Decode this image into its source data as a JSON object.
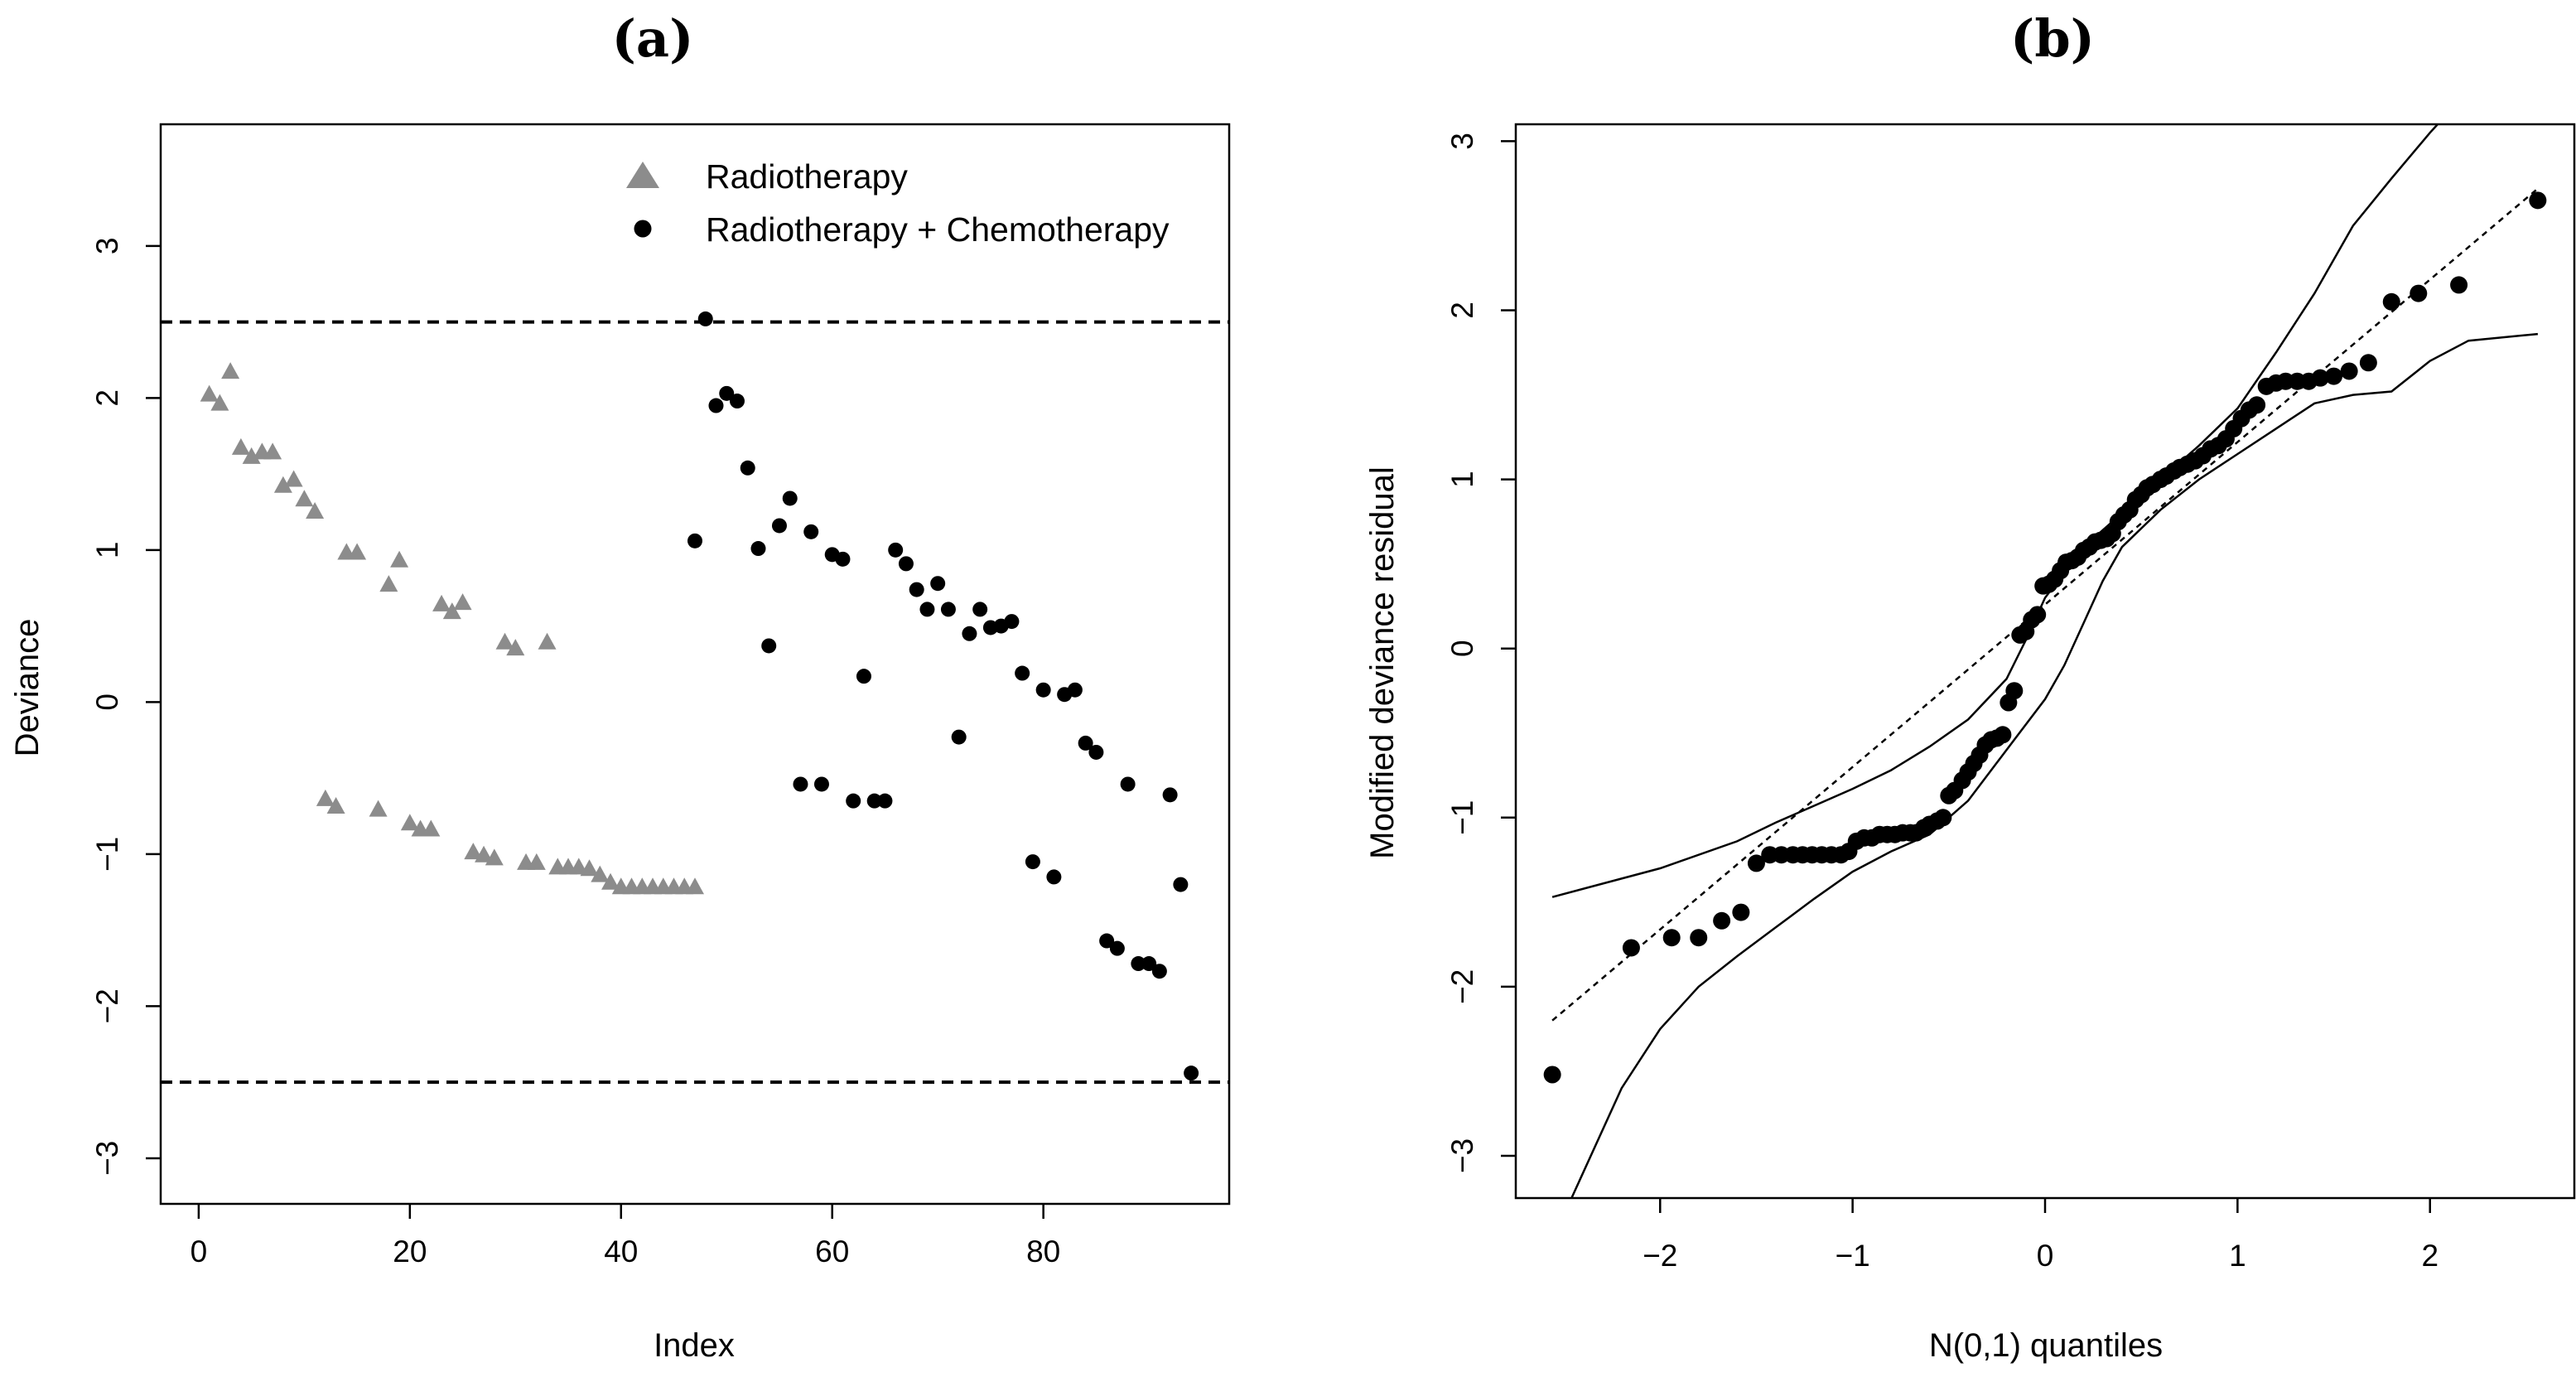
{
  "chart_data": [
    {
      "id": "a",
      "type": "scatter",
      "title": "(a)",
      "xlabel": "Index",
      "ylabel": "Deviance",
      "xlim": [
        -3.6,
        97.6
      ],
      "ylim": [
        -3.3,
        3.8
      ],
      "xticks": [
        0,
        20,
        40,
        60,
        80
      ],
      "xtick_labels": [
        "0",
        "20",
        "40",
        "60",
        "80"
      ],
      "yticks": [
        -3,
        -2,
        -1,
        0,
        1,
        2,
        3
      ],
      "ytick_labels": [
        "−3",
        "−2",
        "−1",
        "0",
        "1",
        "2",
        "3"
      ],
      "hlines": [
        2.5,
        -2.5
      ],
      "legend_position": "top-right",
      "series": [
        {
          "name": "Radiotherapy",
          "marker": "triangle",
          "color": "#8c8c8c",
          "points": [
            [
              1,
              2.02
            ],
            [
              2,
              1.96
            ],
            [
              3,
              2.17
            ],
            [
              4,
              1.67
            ],
            [
              5,
              1.61
            ],
            [
              6,
              1.64
            ],
            [
              7,
              1.64
            ],
            [
              8,
              1.42
            ],
            [
              9,
              1.46
            ],
            [
              10,
              1.33
            ],
            [
              11,
              1.25
            ],
            [
              12,
              -0.64
            ],
            [
              13,
              -0.69
            ],
            [
              14,
              0.98
            ],
            [
              15,
              0.98
            ],
            [
              17,
              -0.71
            ],
            [
              18,
              0.77
            ],
            [
              19,
              0.93
            ],
            [
              20,
              -0.8
            ],
            [
              21,
              -0.84
            ],
            [
              22,
              -0.84
            ],
            [
              23,
              0.64
            ],
            [
              24,
              0.59
            ],
            [
              25,
              0.65
            ],
            [
              26,
              -0.99
            ],
            [
              27,
              -1.01
            ],
            [
              28,
              -1.03
            ],
            [
              29,
              0.39
            ],
            [
              30,
              0.35
            ],
            [
              31,
              -1.06
            ],
            [
              32,
              -1.06
            ],
            [
              33,
              0.39
            ],
            [
              34,
              -1.09
            ],
            [
              35,
              -1.09
            ],
            [
              36,
              -1.09
            ],
            [
              37,
              -1.1
            ],
            [
              38,
              -1.14
            ],
            [
              39,
              -1.19
            ],
            [
              40,
              -1.22
            ],
            [
              41,
              -1.22
            ],
            [
              42,
              -1.22
            ],
            [
              43,
              -1.22
            ],
            [
              44,
              -1.22
            ],
            [
              45,
              -1.22
            ],
            [
              46,
              -1.22
            ],
            [
              47,
              -1.22
            ]
          ]
        },
        {
          "name": "Radiotherapy + Chemotherapy",
          "marker": "circle",
          "color": "#000000",
          "points": [
            [
              47,
              1.06
            ],
            [
              48,
              2.52
            ],
            [
              49,
              1.95
            ],
            [
              50,
              2.03
            ],
            [
              51,
              1.98
            ],
            [
              52,
              1.54
            ],
            [
              53,
              1.01
            ],
            [
              54,
              0.37
            ],
            [
              55,
              1.16
            ],
            [
              56,
              1.34
            ],
            [
              57,
              -0.54
            ],
            [
              58,
              1.12
            ],
            [
              59,
              -0.54
            ],
            [
              60,
              0.97
            ],
            [
              61,
              0.94
            ],
            [
              62,
              -0.65
            ],
            [
              63,
              0.17
            ],
            [
              64,
              -0.65
            ],
            [
              65,
              -0.65
            ],
            [
              66,
              1.0
            ],
            [
              67,
              0.91
            ],
            [
              68,
              0.74
            ],
            [
              69,
              0.61
            ],
            [
              70,
              0.78
            ],
            [
              71,
              0.61
            ],
            [
              72,
              -0.23
            ],
            [
              73,
              0.45
            ],
            [
              74,
              0.61
            ],
            [
              75,
              0.49
            ],
            [
              76,
              0.5
            ],
            [
              77,
              0.53
            ],
            [
              78,
              0.19
            ],
            [
              79,
              -1.05
            ],
            [
              80,
              0.08
            ],
            [
              81,
              -1.15
            ],
            [
              82,
              0.05
            ],
            [
              83,
              0.08
            ],
            [
              84,
              -0.27
            ],
            [
              85,
              -0.33
            ],
            [
              86,
              -1.57
            ],
            [
              87,
              -1.62
            ],
            [
              88,
              -0.54
            ],
            [
              89,
              -1.72
            ],
            [
              90,
              -1.72
            ],
            [
              91,
              -1.77
            ],
            [
              92,
              -0.61
            ],
            [
              93,
              -1.2
            ],
            [
              94,
              -2.44
            ]
          ]
        }
      ]
    },
    {
      "id": "b",
      "type": "scatter",
      "title": "(b)",
      "xlabel": "N(0,1) quantiles",
      "ylabel": "Modified deviance residual",
      "xlim": [
        -2.75,
        2.75
      ],
      "ylim": [
        -3.25,
        3.1
      ],
      "xticks": [
        -2,
        -1,
        0,
        1,
        2
      ],
      "xtick_labels": [
        "−2",
        "−1",
        "0",
        "1",
        "2"
      ],
      "yticks": [
        -3,
        -2,
        -1,
        0,
        1,
        2,
        3
      ],
      "ytick_labels": [
        "−3",
        "−2",
        "−1",
        "0",
        "1",
        "2",
        "3"
      ],
      "points": [
        [
          -2.56,
          -2.52
        ],
        [
          -2.15,
          -1.77
        ],
        [
          -1.94,
          -1.71
        ],
        [
          -1.8,
          -1.71
        ],
        [
          -1.68,
          -1.61
        ],
        [
          -1.58,
          -1.56
        ],
        [
          -1.5,
          -1.27
        ],
        [
          -1.43,
          -1.22
        ],
        [
          -1.37,
          -1.22
        ],
        [
          -1.31,
          -1.22
        ],
        [
          -1.26,
          -1.22
        ],
        [
          -1.21,
          -1.22
        ],
        [
          -1.16,
          -1.22
        ],
        [
          -1.11,
          -1.22
        ],
        [
          -1.06,
          -1.22
        ],
        [
          -1.02,
          -1.2
        ],
        [
          -0.98,
          -1.14
        ],
        [
          -0.94,
          -1.12
        ],
        [
          -0.9,
          -1.12
        ],
        [
          -0.86,
          -1.1
        ],
        [
          -0.82,
          -1.1
        ],
        [
          -0.78,
          -1.1
        ],
        [
          -0.74,
          -1.09
        ],
        [
          -0.7,
          -1.09
        ],
        [
          -0.67,
          -1.09
        ],
        [
          -0.63,
          -1.06
        ],
        [
          -0.6,
          -1.04
        ],
        [
          -0.56,
          -1.02
        ],
        [
          -0.53,
          -1.0
        ],
        [
          -0.5,
          -0.87
        ],
        [
          -0.47,
          -0.84
        ],
        [
          -0.43,
          -0.78
        ],
        [
          -0.4,
          -0.73
        ],
        [
          -0.37,
          -0.68
        ],
        [
          -0.34,
          -0.63
        ],
        [
          -0.31,
          -0.57
        ],
        [
          -0.28,
          -0.54
        ],
        [
          -0.25,
          -0.53
        ],
        [
          -0.22,
          -0.51
        ],
        [
          -0.19,
          -0.32
        ],
        [
          -0.16,
          -0.25
        ],
        [
          -0.13,
          0.08
        ],
        [
          -0.1,
          0.1
        ],
        [
          -0.07,
          0.17
        ],
        [
          -0.04,
          0.2
        ],
        [
          -0.01,
          0.37
        ],
        [
          0.02,
          0.38
        ],
        [
          0.05,
          0.41
        ],
        [
          0.08,
          0.46
        ],
        [
          0.11,
          0.51
        ],
        [
          0.14,
          0.52
        ],
        [
          0.17,
          0.54
        ],
        [
          0.2,
          0.58
        ],
        [
          0.23,
          0.6
        ],
        [
          0.26,
          0.63
        ],
        [
          0.29,
          0.64
        ],
        [
          0.32,
          0.65
        ],
        [
          0.35,
          0.68
        ],
        [
          0.38,
          0.75
        ],
        [
          0.41,
          0.79
        ],
        [
          0.44,
          0.82
        ],
        [
          0.47,
          0.88
        ],
        [
          0.5,
          0.91
        ],
        [
          0.53,
          0.95
        ],
        [
          0.56,
          0.97
        ],
        [
          0.6,
          1.0
        ],
        [
          0.63,
          1.02
        ],
        [
          0.67,
          1.05
        ],
        [
          0.7,
          1.07
        ],
        [
          0.74,
          1.09
        ],
        [
          0.78,
          1.11
        ],
        [
          0.82,
          1.14
        ],
        [
          0.86,
          1.18
        ],
        [
          0.9,
          1.2
        ],
        [
          0.94,
          1.24
        ],
        [
          0.98,
          1.3
        ],
        [
          1.02,
          1.36
        ],
        [
          1.06,
          1.41
        ],
        [
          1.1,
          1.44
        ],
        [
          1.15,
          1.55
        ],
        [
          1.2,
          1.57
        ],
        [
          1.25,
          1.58
        ],
        [
          1.31,
          1.58
        ],
        [
          1.37,
          1.58
        ],
        [
          1.43,
          1.6
        ],
        [
          1.5,
          1.61
        ],
        [
          1.58,
          1.64
        ],
        [
          1.68,
          1.69
        ],
        [
          1.8,
          2.05
        ],
        [
          1.94,
          2.1
        ],
        [
          2.15,
          2.15
        ],
        [
          2.56,
          2.65
        ]
      ],
      "reference_line": {
        "style": "dotted",
        "points": [
          [
            -2.56,
            -2.2
          ],
          [
            2.56,
            2.72
          ]
        ]
      },
      "envelope_upper": [
        [
          -2.56,
          -1.47
        ],
        [
          -2.0,
          -1.3
        ],
        [
          -1.6,
          -1.14
        ],
        [
          -1.4,
          -1.03
        ],
        [
          -1.2,
          -0.93
        ],
        [
          -1.0,
          -0.83
        ],
        [
          -0.8,
          -0.72
        ],
        [
          -0.6,
          -0.58
        ],
        [
          -0.4,
          -0.42
        ],
        [
          -0.2,
          -0.18
        ],
        [
          -0.1,
          0.05
        ],
        [
          0.0,
          0.3
        ],
        [
          0.1,
          0.45
        ],
        [
          0.2,
          0.6
        ],
        [
          0.4,
          0.8
        ],
        [
          0.6,
          1.0
        ],
        [
          0.8,
          1.2
        ],
        [
          1.0,
          1.42
        ],
        [
          1.2,
          1.75
        ],
        [
          1.4,
          2.1
        ],
        [
          1.6,
          2.5
        ],
        [
          1.8,
          2.78
        ],
        [
          2.0,
          3.05
        ],
        [
          2.2,
          3.3
        ]
      ],
      "envelope_lower": [
        [
          -2.48,
          -3.3
        ],
        [
          -2.2,
          -2.6
        ],
        [
          -2.0,
          -2.25
        ],
        [
          -1.8,
          -2.0
        ],
        [
          -1.6,
          -1.82
        ],
        [
          -1.4,
          -1.65
        ],
        [
          -1.2,
          -1.48
        ],
        [
          -1.0,
          -1.32
        ],
        [
          -0.8,
          -1.2
        ],
        [
          -0.6,
          -1.1
        ],
        [
          -0.4,
          -0.9
        ],
        [
          -0.2,
          -0.6
        ],
        [
          0.0,
          -0.3
        ],
        [
          0.1,
          -0.1
        ],
        [
          0.2,
          0.15
        ],
        [
          0.3,
          0.4
        ],
        [
          0.4,
          0.6
        ],
        [
          0.6,
          0.82
        ],
        [
          0.8,
          1.0
        ],
        [
          1.0,
          1.15
        ],
        [
          1.2,
          1.3
        ],
        [
          1.4,
          1.45
        ],
        [
          1.6,
          1.5
        ],
        [
          1.8,
          1.52
        ],
        [
          2.0,
          1.7
        ],
        [
          2.2,
          1.82
        ],
        [
          2.56,
          1.86
        ]
      ]
    }
  ]
}
